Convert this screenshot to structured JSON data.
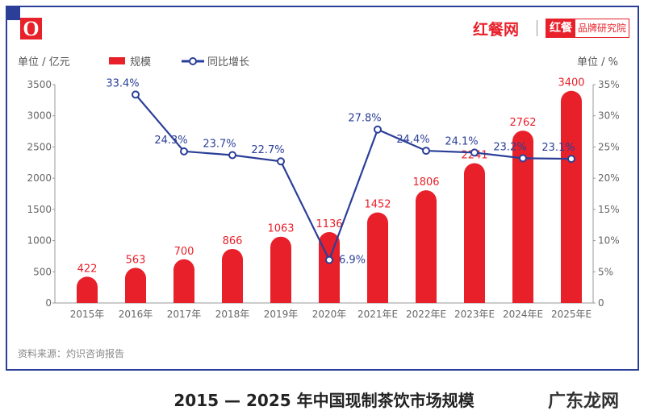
{
  "brand": {
    "logo_letter": "O",
    "name": "红餐网",
    "sub_badge": "红餐",
    "sub_name": "品牌研究院"
  },
  "chart_data": {
    "type": "bar+line",
    "title": "2015 — 2025 年中国现制茶饮市场规模",
    "left_unit": "单位 / 亿元",
    "right_unit": "单位 / %",
    "categories": [
      "2015年",
      "2016年",
      "2017年",
      "2018年",
      "2019年",
      "2020年",
      "2021年E",
      "2022年E",
      "2023年E",
      "2024年E",
      "2025年E"
    ],
    "series": [
      {
        "name": "规模",
        "type": "bar",
        "color": "#e8202a",
        "values": [
          422,
          563,
          700,
          866,
          1063,
          1136,
          1452,
          1806,
          2241,
          2762,
          3400
        ],
        "labels": [
          "422",
          "563",
          "700",
          "866",
          "1063",
          "1136",
          "1452",
          "1806",
          "2241",
          "2762",
          "3400"
        ]
      },
      {
        "name": "同比增长",
        "type": "line",
        "color": "#2b3f98",
        "values": [
          null,
          33.4,
          24.3,
          23.7,
          22.7,
          6.9,
          27.8,
          24.4,
          24.1,
          23.2,
          23.1
        ],
        "labels": [
          "",
          "33.4%",
          "24.3%",
          "23.7%",
          "22.7%",
          "6.9%",
          "27.8%",
          "24.4%",
          "24.1%",
          "23.2%",
          "23.1%"
        ]
      }
    ],
    "left_axis": {
      "min": 0,
      "max": 3500,
      "ticks": [
        "0",
        "500",
        "1000",
        "1500",
        "2000",
        "2500",
        "3000",
        "3500"
      ]
    },
    "right_axis": {
      "min": 0,
      "max": 35,
      "ticks": [
        "0",
        "5%",
        "10%",
        "15%",
        "20%",
        "25%",
        "30%",
        "35%"
      ]
    },
    "legend_placement": "top-left",
    "grid": false
  },
  "source": "资料来源：灼识咨询报告",
  "watermark": "广东龙网"
}
